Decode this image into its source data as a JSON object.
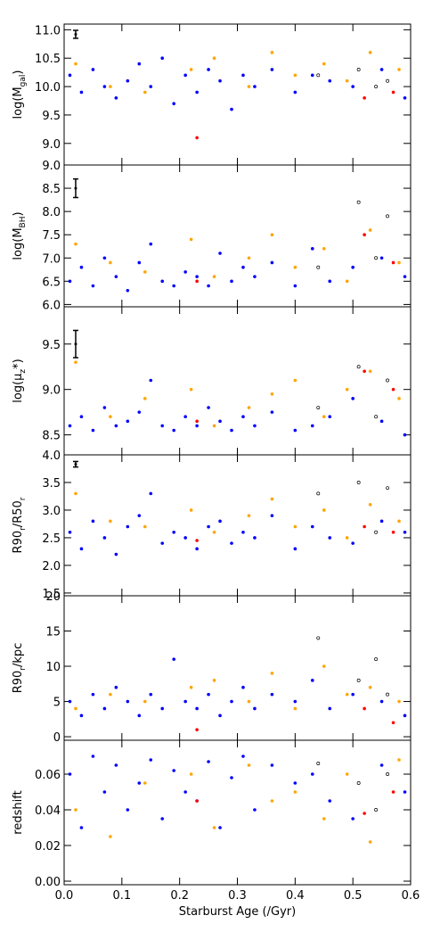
{
  "chart_data": [
    {
      "type": "scatter",
      "ylabel": [
        "log(M",
        "gal",
        ")"
      ],
      "ylim": [
        8.62,
        11.1
      ],
      "yticks": [
        {
          "value": 9,
          "label": "9.0"
        },
        9.5,
        {
          "value": 10,
          "label": "10.0"
        },
        10.5,
        {
          "value": 11,
          "label": "11.0"
        }
      ],
      "errorbar": {
        "x": 0.02,
        "y": 10.92,
        "err": 0.07
      },
      "series": [
        {
          "color": "#0000ff",
          "filled": true,
          "x": [
            0.01,
            0.03,
            0.05,
            0.07,
            0.09,
            0.11,
            0.13,
            0.15,
            0.17,
            0.19,
            0.21,
            0.23,
            0.25,
            0.27,
            0.29,
            0.31,
            0.33,
            0.36,
            0.4,
            0.43,
            0.46,
            0.5,
            0.55,
            0.59
          ],
          "values": [
            10.2,
            9.9,
            10.3,
            10.0,
            9.8,
            10.1,
            10.4,
            10.0,
            10.5,
            9.7,
            10.2,
            9.9,
            10.3,
            10.1,
            9.6,
            10.2,
            10.0,
            10.3,
            9.9,
            10.2,
            10.1,
            10.0,
            10.3,
            9.8
          ]
        },
        {
          "color": "#ffa500",
          "filled": true,
          "x": [
            0.02,
            0.08,
            0.14,
            0.22,
            0.26,
            0.32,
            0.36,
            0.4,
            0.45,
            0.49,
            0.53,
            0.58
          ],
          "values": [
            10.4,
            10.0,
            9.9,
            10.3,
            10.5,
            10.0,
            10.6,
            10.2,
            10.4,
            10.1,
            10.6,
            10.3
          ]
        },
        {
          "color": "#ff0000",
          "filled": true,
          "x": [
            0.23,
            0.52,
            0.57
          ],
          "values": [
            9.1,
            9.8,
            9.9
          ]
        },
        {
          "color": "#000000",
          "filled": false,
          "x": [
            0.44,
            0.51,
            0.54,
            0.56
          ],
          "values": [
            10.2,
            10.3,
            10.0,
            10.1
          ]
        }
      ]
    },
    {
      "type": "scatter",
      "ylabel": [
        "log(M",
        "BH",
        ")"
      ],
      "ylim": [
        5.95,
        9.0
      ],
      "yticks": [
        {
          "value": 6,
          "label": "6.0"
        },
        6.5,
        {
          "value": 7,
          "label": "7.0"
        },
        7.5,
        {
          "value": 8,
          "label": "8.0"
        },
        8.5,
        {
          "value": 9,
          "label": "9.0"
        }
      ],
      "errorbar": {
        "x": 0.02,
        "y": 8.5,
        "err": 0.2
      },
      "series": [
        {
          "color": "#0000ff",
          "filled": true,
          "x": [
            0.01,
            0.03,
            0.05,
            0.07,
            0.09,
            0.11,
            0.13,
            0.15,
            0.17,
            0.19,
            0.21,
            0.23,
            0.25,
            0.27,
            0.29,
            0.31,
            0.33,
            0.36,
            0.4,
            0.43,
            0.46,
            0.5,
            0.55,
            0.59
          ],
          "values": [
            6.5,
            6.8,
            6.4,
            7.0,
            6.6,
            6.3,
            6.9,
            7.3,
            6.5,
            6.4,
            6.7,
            6.6,
            6.4,
            7.1,
            6.5,
            6.8,
            6.6,
            6.9,
            6.4,
            7.2,
            6.5,
            6.8,
            7.0,
            6.6
          ]
        },
        {
          "color": "#ffa500",
          "filled": true,
          "x": [
            0.02,
            0.08,
            0.14,
            0.22,
            0.26,
            0.32,
            0.36,
            0.4,
            0.45,
            0.49,
            0.53,
            0.58
          ],
          "values": [
            7.3,
            6.9,
            6.7,
            7.4,
            6.6,
            7.0,
            7.5,
            6.8,
            7.2,
            6.5,
            7.6,
            6.9
          ]
        },
        {
          "color": "#ff0000",
          "filled": true,
          "x": [
            0.23,
            0.52,
            0.57
          ],
          "values": [
            6.5,
            7.5,
            6.9
          ]
        },
        {
          "color": "#000000",
          "filled": false,
          "x": [
            0.44,
            0.51,
            0.54,
            0.56
          ],
          "values": [
            6.8,
            8.2,
            7.0,
            7.9
          ]
        }
      ]
    },
    {
      "type": "scatter",
      "ylabel": [
        "log(μ",
        "z",
        "*)"
      ],
      "ylim": [
        8.28,
        9.91
      ],
      "yticks": [
        8.5,
        {
          "value": 9,
          "label": "9.0"
        },
        9.5
      ],
      "errorbar": {
        "x": 0.02,
        "y": 9.5,
        "err": 0.15
      },
      "series": [
        {
          "color": "#0000ff",
          "filled": true,
          "x": [
            0.01,
            0.03,
            0.05,
            0.07,
            0.09,
            0.11,
            0.13,
            0.15,
            0.17,
            0.19,
            0.21,
            0.23,
            0.25,
            0.27,
            0.29,
            0.31,
            0.33,
            0.36,
            0.4,
            0.43,
            0.46,
            0.5,
            0.55,
            0.59
          ],
          "values": [
            8.6,
            8.7,
            8.55,
            8.8,
            8.6,
            8.65,
            8.75,
            9.1,
            8.6,
            8.55,
            8.7,
            8.6,
            8.8,
            8.65,
            8.55,
            8.7,
            8.6,
            8.75,
            8.55,
            8.6,
            8.7,
            8.9,
            8.65,
            8.5
          ]
        },
        {
          "color": "#ffa500",
          "filled": true,
          "x": [
            0.02,
            0.08,
            0.14,
            0.22,
            0.26,
            0.32,
            0.36,
            0.4,
            0.45,
            0.49,
            0.53,
            0.58
          ],
          "values": [
            9.3,
            8.7,
            8.9,
            9.0,
            8.6,
            8.8,
            8.95,
            9.1,
            8.7,
            9.0,
            9.2,
            8.9
          ]
        },
        {
          "color": "#ff0000",
          "filled": true,
          "x": [
            0.23,
            0.52,
            0.57
          ],
          "values": [
            8.65,
            9.2,
            9.0
          ]
        },
        {
          "color": "#000000",
          "filled": false,
          "x": [
            0.44,
            0.51,
            0.54,
            0.56
          ],
          "values": [
            8.8,
            9.25,
            8.7,
            9.1
          ]
        }
      ]
    },
    {
      "type": "scatter",
      "ylabel": [
        "R90",
        "r",
        "/R50",
        "r"
      ],
      "ylim": [
        1.45,
        4.0
      ],
      "yticks": [
        1.5,
        {
          "value": 2,
          "label": "2.0"
        },
        2.5,
        {
          "value": 3,
          "label": "3.0"
        },
        3.5,
        {
          "value": 4,
          "label": "4.0"
        }
      ],
      "errorbar": {
        "x": 0.02,
        "y": 3.83,
        "err": 0.05
      },
      "series": [
        {
          "color": "#0000ff",
          "filled": true,
          "x": [
            0.01,
            0.03,
            0.05,
            0.07,
            0.09,
            0.11,
            0.13,
            0.15,
            0.17,
            0.19,
            0.21,
            0.23,
            0.25,
            0.27,
            0.29,
            0.31,
            0.33,
            0.36,
            0.4,
            0.43,
            0.46,
            0.5,
            0.55,
            0.59
          ],
          "values": [
            2.6,
            2.3,
            2.8,
            2.5,
            2.2,
            2.7,
            2.9,
            3.3,
            2.4,
            2.6,
            2.5,
            2.3,
            2.7,
            2.8,
            2.4,
            2.6,
            2.5,
            2.9,
            2.3,
            2.7,
            2.5,
            2.4,
            2.8,
            2.6
          ]
        },
        {
          "color": "#ffa500",
          "filled": true,
          "x": [
            0.02,
            0.08,
            0.14,
            0.22,
            0.26,
            0.32,
            0.36,
            0.4,
            0.45,
            0.49,
            0.53,
            0.58
          ],
          "values": [
            3.3,
            2.8,
            2.7,
            3.0,
            2.6,
            2.9,
            3.2,
            2.7,
            3.0,
            2.5,
            3.1,
            2.8
          ]
        },
        {
          "color": "#ff0000",
          "filled": true,
          "x": [
            0.23,
            0.52,
            0.57
          ],
          "values": [
            2.45,
            2.7,
            2.6
          ]
        },
        {
          "color": "#000000",
          "filled": false,
          "x": [
            0.44,
            0.51,
            0.54,
            0.56
          ],
          "values": [
            3.3,
            3.5,
            2.6,
            3.4
          ]
        }
      ]
    },
    {
      "type": "scatter",
      "ylabel": [
        "R90",
        "r",
        "/kpc"
      ],
      "ylim": [
        -0.5,
        20
      ],
      "yticks": [
        0,
        5,
        10,
        15,
        20
      ],
      "series": [
        {
          "color": "#0000ff",
          "filled": true,
          "x": [
            0.01,
            0.03,
            0.05,
            0.07,
            0.09,
            0.11,
            0.13,
            0.15,
            0.17,
            0.19,
            0.21,
            0.23,
            0.25,
            0.27,
            0.29,
            0.31,
            0.33,
            0.36,
            0.4,
            0.43,
            0.46,
            0.5,
            0.55,
            0.59
          ],
          "values": [
            5,
            3,
            6,
            4,
            7,
            5,
            3,
            6,
            4,
            11,
            5,
            4,
            6,
            3,
            5,
            7,
            4,
            6,
            5,
            8,
            4,
            6,
            5,
            3
          ]
        },
        {
          "color": "#ffa500",
          "filled": true,
          "x": [
            0.02,
            0.08,
            0.14,
            0.22,
            0.26,
            0.32,
            0.36,
            0.4,
            0.45,
            0.49,
            0.53,
            0.58
          ],
          "values": [
            4,
            6,
            5,
            7,
            8,
            5,
            9,
            4,
            10,
            6,
            7,
            5
          ]
        },
        {
          "color": "#ff0000",
          "filled": true,
          "x": [
            0.23,
            0.52,
            0.57
          ],
          "values": [
            1,
            4,
            2
          ]
        },
        {
          "color": "#000000",
          "filled": false,
          "x": [
            0.44,
            0.51,
            0.54,
            0.56
          ],
          "values": [
            14,
            8,
            11,
            6
          ]
        }
      ]
    },
    {
      "type": "scatter",
      "ylabel": [
        "redshift"
      ],
      "ylim": [
        -0.002,
        0.079
      ],
      "yticks": [
        {
          "value": 0,
          "label": "0.00"
        },
        0.02,
        0.04,
        0.06
      ],
      "xlabel": "Starburst Age (/Gyr)",
      "xlim": [
        0,
        0.6
      ],
      "xticks": [
        {
          "value": 0,
          "label": "0.0"
        },
        0.1,
        0.2,
        0.3,
        0.4,
        0.5,
        0.6
      ],
      "series": [
        {
          "color": "#0000ff",
          "filled": true,
          "x": [
            0.01,
            0.03,
            0.05,
            0.07,
            0.09,
            0.11,
            0.13,
            0.15,
            0.17,
            0.19,
            0.21,
            0.23,
            0.25,
            0.27,
            0.29,
            0.31,
            0.33,
            0.36,
            0.4,
            0.43,
            0.46,
            0.5,
            0.55,
            0.59
          ],
          "values": [
            0.06,
            0.03,
            0.07,
            0.05,
            0.065,
            0.04,
            0.055,
            0.068,
            0.035,
            0.062,
            0.05,
            0.045,
            0.067,
            0.03,
            0.058,
            0.07,
            0.04,
            0.065,
            0.055,
            0.06,
            0.045,
            0.035,
            0.065,
            0.05
          ]
        },
        {
          "color": "#ffa500",
          "filled": true,
          "x": [
            0.02,
            0.08,
            0.14,
            0.22,
            0.26,
            0.32,
            0.36,
            0.4,
            0.45,
            0.49,
            0.53,
            0.58
          ],
          "values": [
            0.04,
            0.025,
            0.055,
            0.06,
            0.03,
            0.065,
            0.045,
            0.05,
            0.035,
            0.06,
            0.022,
            0.068
          ]
        },
        {
          "color": "#ff0000",
          "filled": true,
          "x": [
            0.23,
            0.52,
            0.57
          ],
          "values": [
            0.045,
            0.038,
            0.05
          ]
        },
        {
          "color": "#000000",
          "filled": false,
          "x": [
            0.44,
            0.51,
            0.54,
            0.56
          ],
          "values": [
            0.066,
            0.055,
            0.04,
            0.06
          ]
        }
      ]
    }
  ]
}
